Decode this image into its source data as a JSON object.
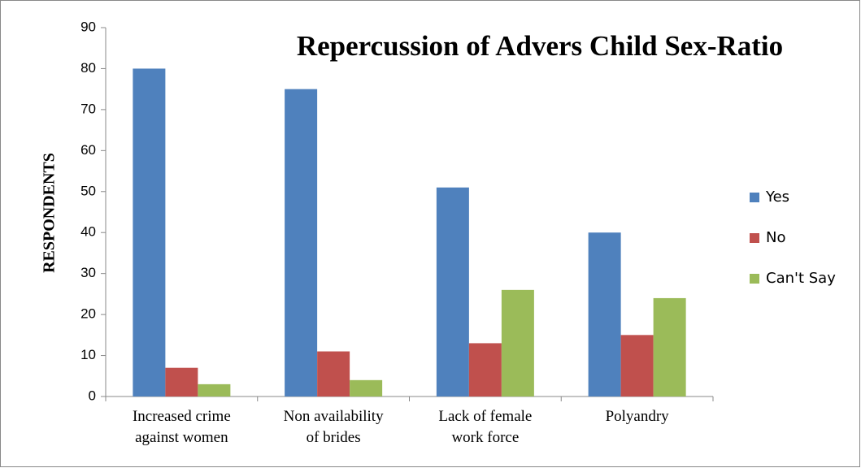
{
  "chart_data": {
    "type": "bar",
    "title": "Repercussion of Advers Child Sex-Ratio",
    "y_label": "RESPONDENTS",
    "categories": [
      "Increased crime against women",
      "Non availability of brides",
      "Lack of female work force",
      "Polyandry"
    ],
    "series": [
      {
        "name": "Yes",
        "color": "#4f81bd",
        "values": [
          80,
          75,
          51,
          40
        ]
      },
      {
        "name": "No",
        "color": "#c0504d",
        "values": [
          7,
          11,
          13,
          15
        ]
      },
      {
        "name": "Can't Say",
        "color": "#9bbb59",
        "values": [
          3,
          4,
          26,
          24
        ]
      }
    ],
    "ylim": [
      0,
      90
    ],
    "yticks": [
      0,
      10,
      20,
      30,
      40,
      50,
      60,
      70,
      80,
      90
    ],
    "grid": false,
    "legend": "right"
  }
}
